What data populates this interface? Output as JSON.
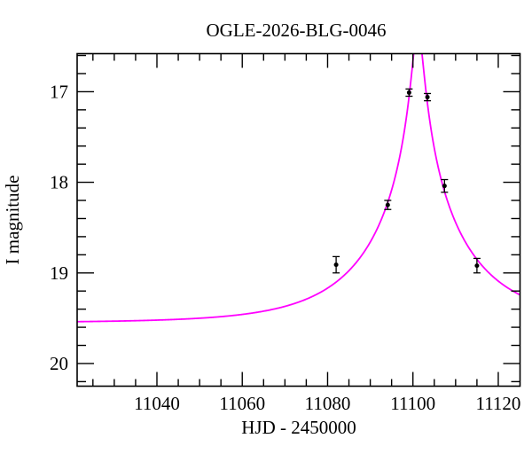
{
  "chart_data": {
    "type": "scatter",
    "title": "OGLE-2026-BLG-0046",
    "xlabel": "HJD - 2450000",
    "ylabel": "I magnitude",
    "xlim": [
      11021.3,
      11125.1
    ],
    "ylim": [
      16.58,
      20.25
    ],
    "y_axis_inverted": true,
    "grid": false,
    "legend": "none",
    "x_major_ticks": [
      11040,
      11060,
      11080,
      11100,
      11120
    ],
    "x_minor_step": 5,
    "y_major_ticks": [
      17,
      18,
      19,
      20
    ],
    "y_minor_step": 0.2,
    "points": [
      {
        "hjd": 11082.0,
        "mag": 18.91,
        "err": 0.09
      },
      {
        "hjd": 11094.1,
        "mag": 18.25,
        "err": 0.05
      },
      {
        "hjd": 11099.1,
        "mag": 17.01,
        "err": 0.04
      },
      {
        "hjd": 11103.4,
        "mag": 17.06,
        "err": 0.04
      },
      {
        "hjd": 11107.4,
        "mag": 18.04,
        "err": 0.07
      },
      {
        "hjd": 11115.0,
        "mag": 18.92,
        "err": 0.08
      }
    ],
    "model_curve": {
      "type": "paczynski-microlensing",
      "t0": 11101.15,
      "tE": 23.5,
      "u0": 0.05,
      "baseline_mag": 19.55,
      "peak_clipped_above_frame": true
    },
    "colors": {
      "model_curve": "#ff00ff",
      "data_points": "#000000",
      "frame": "#000000",
      "background": "#ffffff"
    }
  }
}
